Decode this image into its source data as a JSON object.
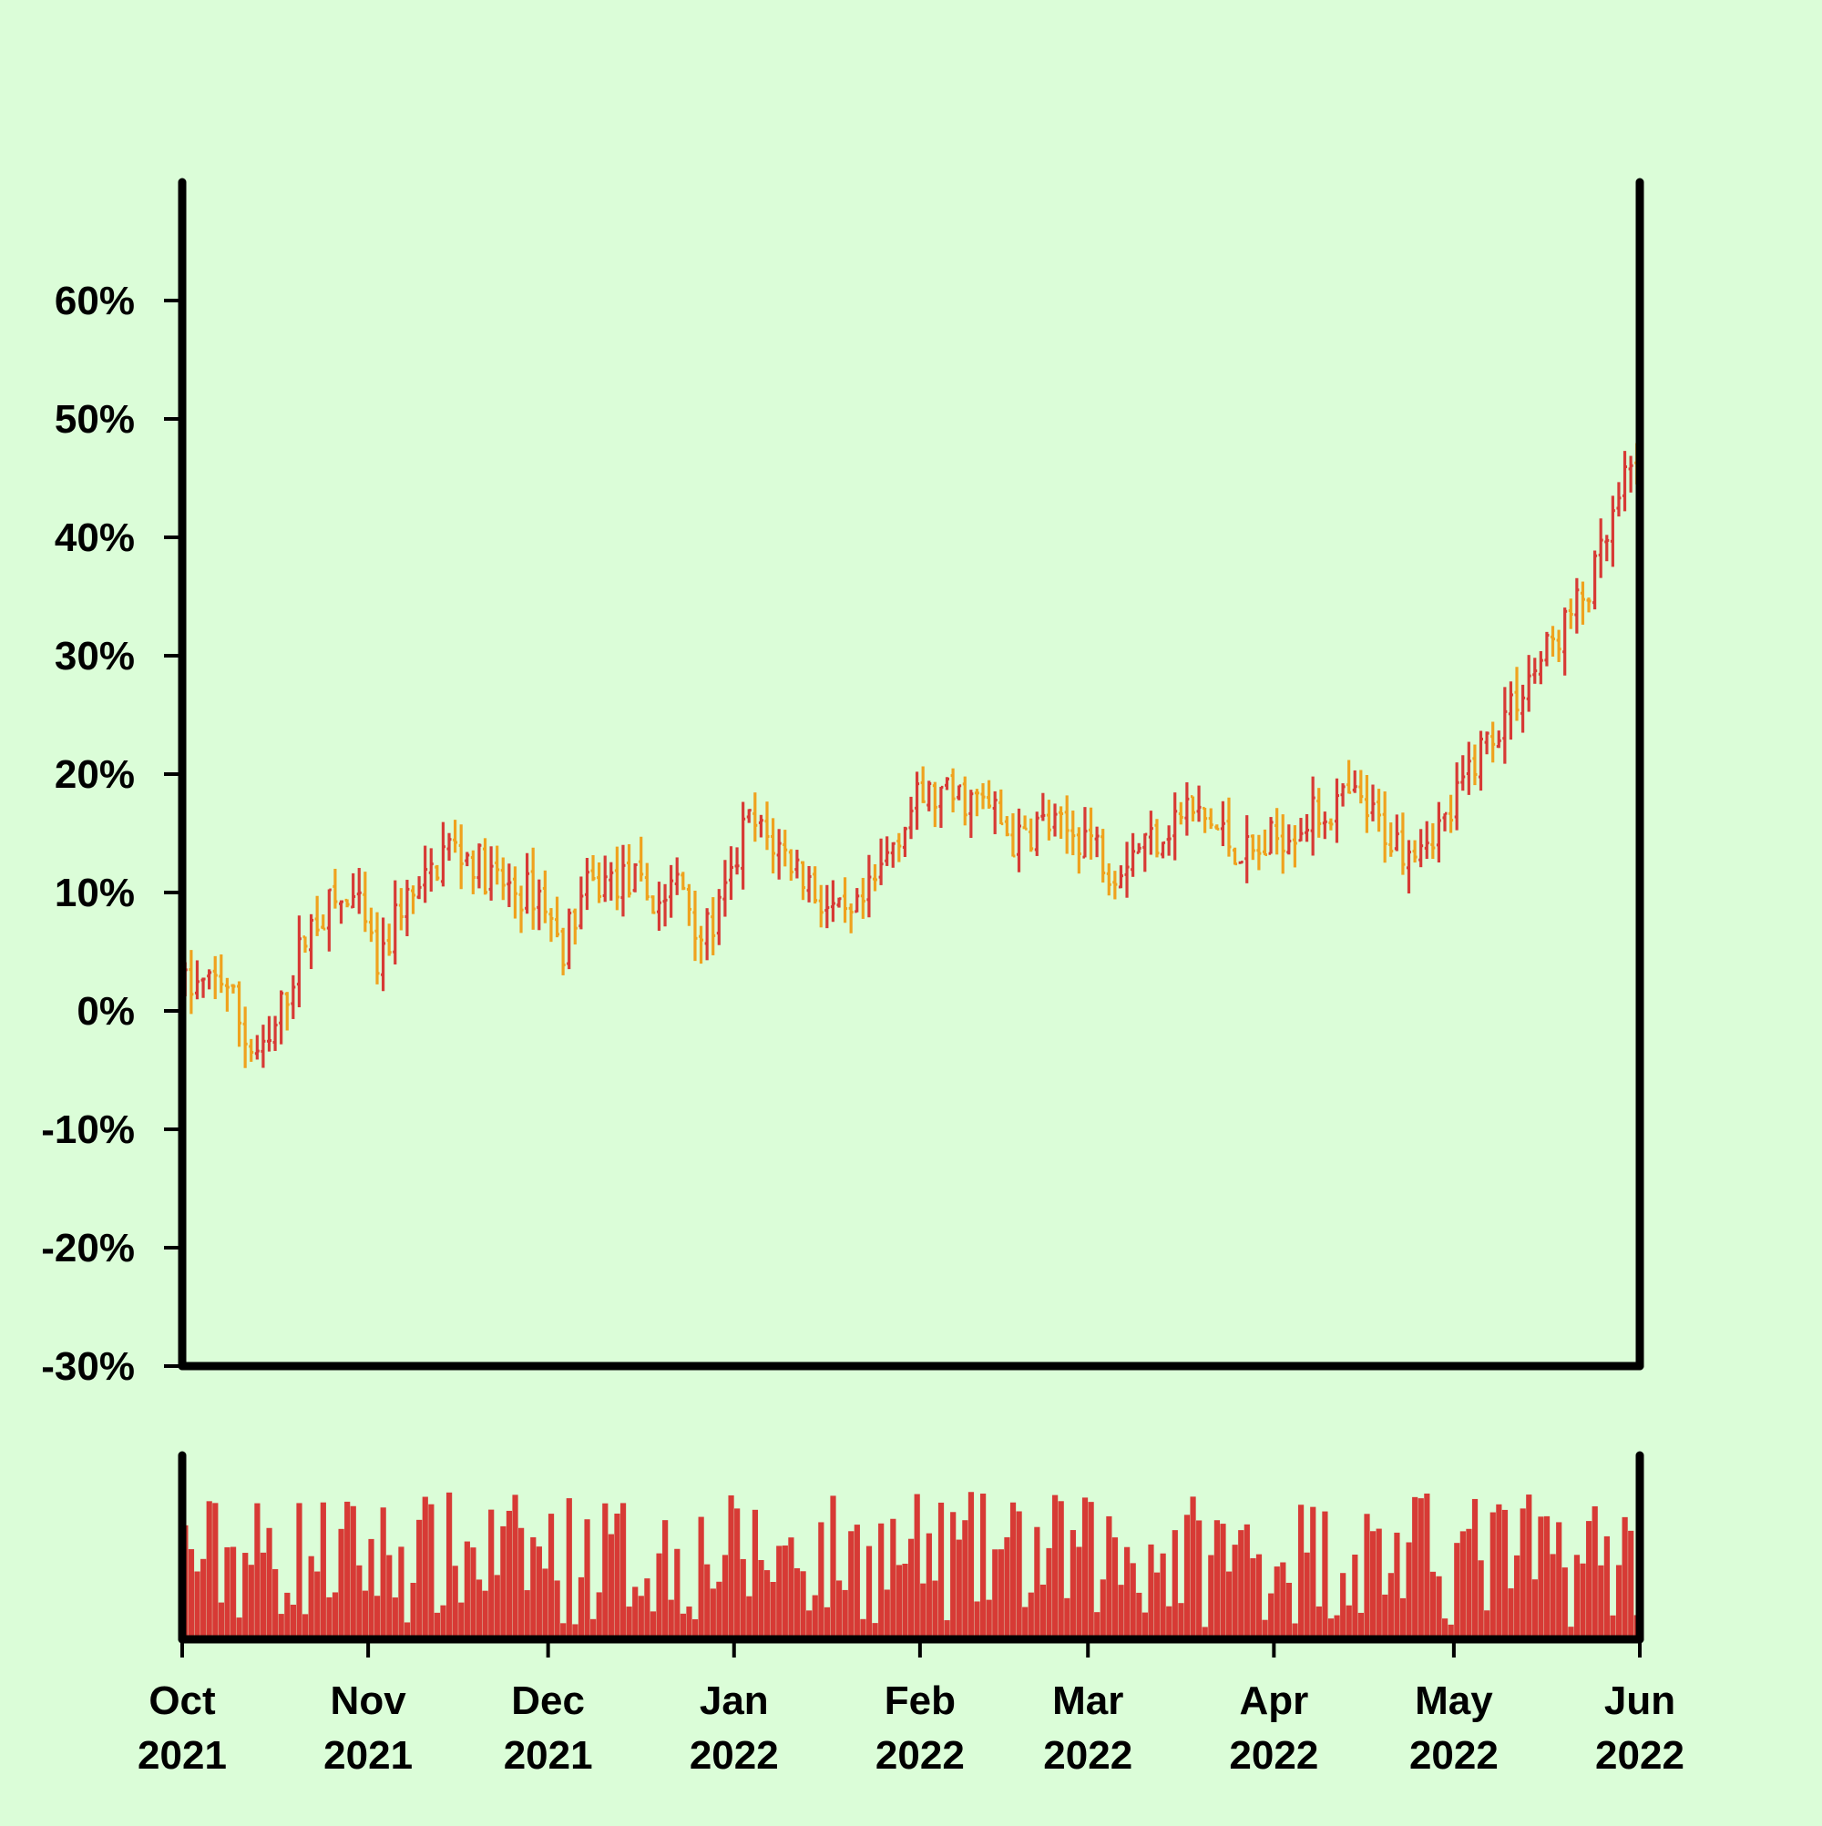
{
  "chart_data": {
    "type": "ohlc",
    "subtype": "ohlc-bars-with-volume",
    "title": "",
    "xlabel": "",
    "ylabel": "",
    "ylim": [
      -0.3,
      0.7
    ],
    "y_ticks": [
      -0.3,
      -0.2,
      -0.1,
      0.0,
      0.1,
      0.2,
      0.3,
      0.4,
      0.5,
      0.6
    ],
    "y_tick_labels": [
      "-30%",
      "-20%",
      "-10%",
      "0%",
      "10%",
      "20%",
      "30%",
      "40%",
      "50%",
      "60%"
    ],
    "x_range": [
      "2021-10-01",
      "2022-06-01"
    ],
    "x_ticks": [
      {
        "date": "2021-10-01",
        "month": "Oct",
        "year": "2021"
      },
      {
        "date": "2021-11-01",
        "month": "Nov",
        "year": "2021"
      },
      {
        "date": "2021-12-01",
        "month": "Dec",
        "year": "2021"
      },
      {
        "date": "2022-01-01",
        "month": "Jan",
        "year": "2022"
      },
      {
        "date": "2022-02-01",
        "month": "Feb",
        "year": "2022"
      },
      {
        "date": "2022-03-01",
        "month": "Mar",
        "year": "2022"
      },
      {
        "date": "2022-04-01",
        "month": "Apr",
        "year": "2022"
      },
      {
        "date": "2022-05-01",
        "month": "May",
        "year": "2022"
      },
      {
        "date": "2022-06-01",
        "month": "Jun",
        "year": "2022"
      }
    ],
    "grid": false,
    "legend": "none",
    "colors": {
      "up": "#d73a35",
      "down": "#efa21e",
      "volume": "#d73a35",
      "background": "#dbfdd8",
      "axis": "#000000"
    },
    "close_anchors": [
      [
        "2021-10-01",
        0.02
      ],
      [
        "2021-10-05",
        0.02
      ],
      [
        "2021-10-08",
        0.03
      ],
      [
        "2021-10-12",
        -0.03
      ],
      [
        "2021-10-15",
        -0.04
      ],
      [
        "2021-10-18",
        0.01
      ],
      [
        "2021-10-22",
        0.07
      ],
      [
        "2021-10-26",
        0.09
      ],
      [
        "2021-10-30",
        0.09
      ],
      [
        "2021-11-03",
        0.03
      ],
      [
        "2021-11-06",
        0.09
      ],
      [
        "2021-11-10",
        0.1
      ],
      [
        "2021-11-14",
        0.14
      ],
      [
        "2021-11-18",
        0.13
      ],
      [
        "2021-11-22",
        0.11
      ],
      [
        "2021-11-26",
        0.1
      ],
      [
        "2021-11-30",
        0.1
      ],
      [
        "2021-12-03",
        0.05
      ],
      [
        "2021-12-07",
        0.1
      ],
      [
        "2021-12-11",
        0.11
      ],
      [
        "2021-12-15",
        0.11
      ],
      [
        "2021-12-19",
        0.09
      ],
      [
        "2021-12-23",
        0.11
      ],
      [
        "2021-12-27",
        0.06
      ],
      [
        "2021-12-31",
        0.1
      ],
      [
        "2022-01-03",
        0.16
      ],
      [
        "2022-01-08",
        0.14
      ],
      [
        "2022-01-12",
        0.12
      ],
      [
        "2022-01-16",
        0.09
      ],
      [
        "2022-01-20",
        0.07
      ],
      [
        "2022-01-24",
        0.1
      ],
      [
        "2022-01-28",
        0.15
      ],
      [
        "2022-02-01",
        0.18
      ],
      [
        "2022-02-05",
        0.18
      ],
      [
        "2022-02-09",
        0.18
      ],
      [
        "2022-02-13",
        0.17
      ],
      [
        "2022-02-17",
        0.14
      ],
      [
        "2022-02-21",
        0.16
      ],
      [
        "2022-02-25",
        0.15
      ],
      [
        "2022-03-01",
        0.15
      ],
      [
        "2022-03-05",
        0.12
      ],
      [
        "2022-03-09",
        0.14
      ],
      [
        "2022-03-13",
        0.15
      ],
      [
        "2022-03-17",
        0.17
      ],
      [
        "2022-03-21",
        0.16
      ],
      [
        "2022-03-25",
        0.14
      ],
      [
        "2022-03-29",
        0.13
      ],
      [
        "2022-04-02",
        0.15
      ],
      [
        "2022-04-06",
        0.16
      ],
      [
        "2022-04-10",
        0.17
      ],
      [
        "2022-04-14",
        0.18
      ],
      [
        "2022-04-18",
        0.16
      ],
      [
        "2022-04-22",
        0.14
      ],
      [
        "2022-04-26",
        0.15
      ],
      [
        "2022-04-30",
        0.16
      ],
      [
        "2022-05-04",
        0.21
      ],
      [
        "2022-05-08",
        0.24
      ],
      [
        "2022-05-12",
        0.27
      ],
      [
        "2022-05-16",
        0.3
      ],
      [
        "2022-05-20",
        0.33
      ],
      [
        "2022-05-24",
        0.36
      ],
      [
        "2022-05-28",
        0.42
      ],
      [
        "2022-06-01",
        0.48
      ]
    ],
    "volume": "unlabeled daily volume bars, relative heights only"
  }
}
